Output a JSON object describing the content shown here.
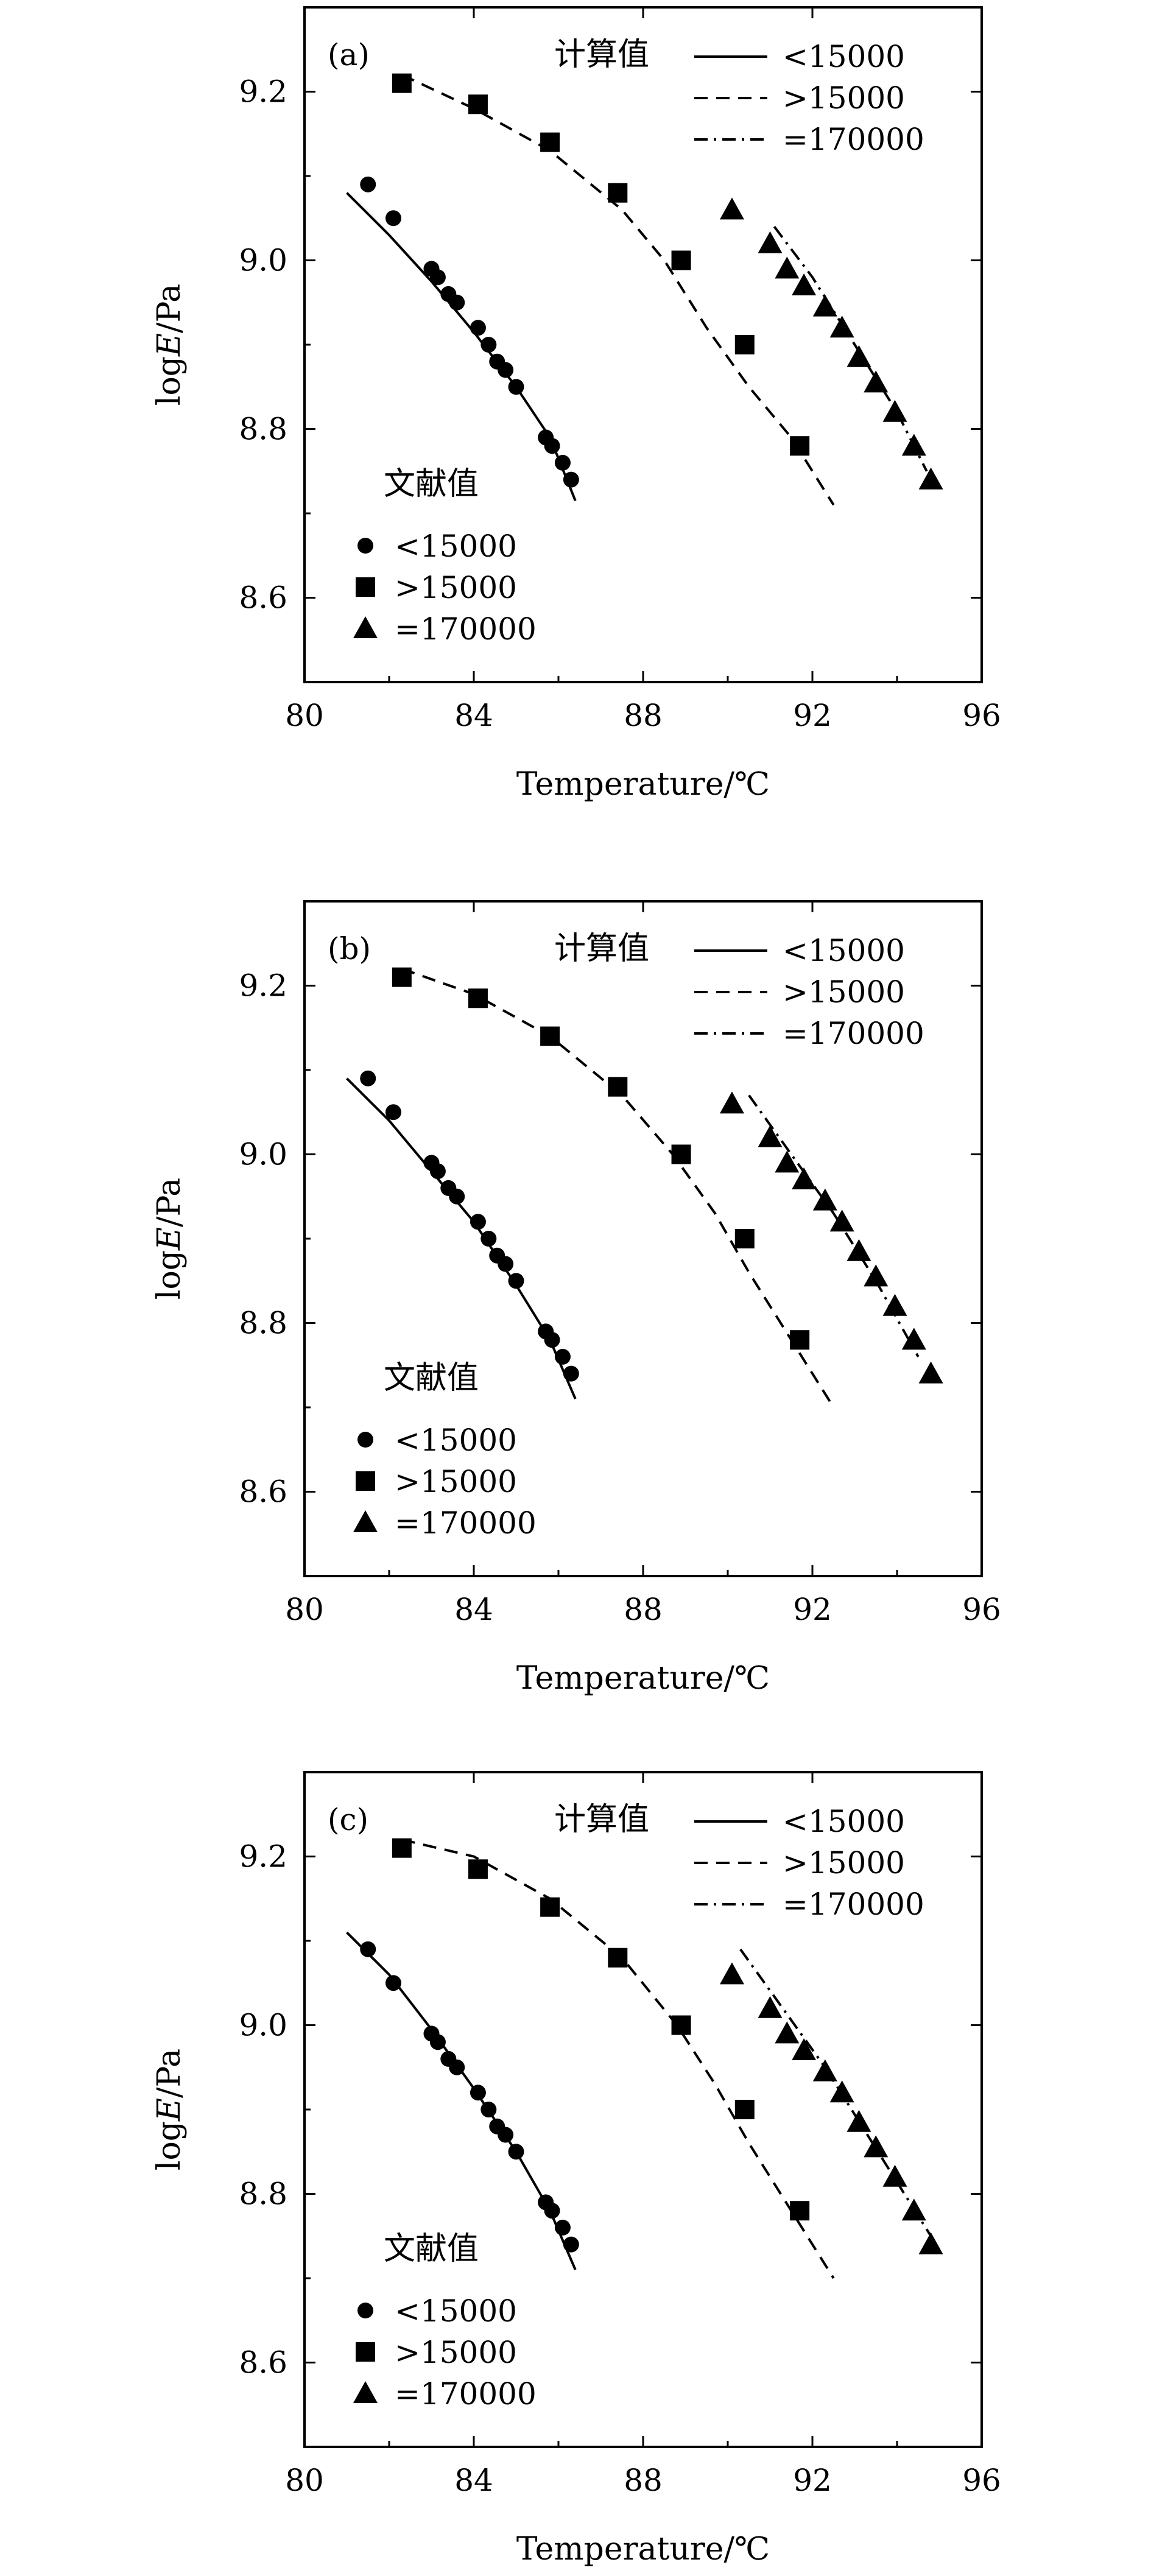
{
  "chart_data": [
    {
      "type": "scatter",
      "panel_label": "(a)",
      "xlabel": "Temperature/℃",
      "ylabel": "logE/Pa",
      "xlim": [
        80,
        96
      ],
      "ylim": [
        8.5,
        9.3
      ],
      "xticks": [
        "80",
        "84",
        "88",
        "92",
        "96"
      ],
      "yticks": [
        "8.6",
        "8.8",
        "9.0",
        "9.2"
      ],
      "legend_calc_title": "计算值",
      "legend_lit_title": "文献值",
      "series": [
        {
          "label": "<15000",
          "marker": "circle",
          "line": "solid",
          "points": [
            [
              81.5,
              9.09
            ],
            [
              82.1,
              9.05
            ],
            [
              83.0,
              8.99
            ],
            [
              83.15,
              8.98
            ],
            [
              83.4,
              8.96
            ],
            [
              83.6,
              8.95
            ],
            [
              84.1,
              8.92
            ],
            [
              84.35,
              8.9
            ],
            [
              84.55,
              8.88
            ],
            [
              84.75,
              8.87
            ],
            [
              85.0,
              8.85
            ],
            [
              85.7,
              8.79
            ],
            [
              85.85,
              8.78
            ],
            [
              86.1,
              8.76
            ],
            [
              86.3,
              8.74
            ]
          ],
          "curve": [
            [
              81.0,
              9.08
            ],
            [
              82.0,
              9.03
            ],
            [
              83.0,
              8.975
            ],
            [
              84.0,
              8.915
            ],
            [
              85.0,
              8.85
            ],
            [
              85.8,
              8.79
            ],
            [
              86.4,
              8.715
            ]
          ]
        },
        {
          "label": ">15000",
          "marker": "square",
          "line": "dashed",
          "points": [
            [
              82.3,
              9.21
            ],
            [
              84.1,
              9.185
            ],
            [
              85.8,
              9.14
            ],
            [
              87.4,
              9.08
            ],
            [
              88.9,
              9.0
            ],
            [
              90.4,
              8.9
            ],
            [
              91.7,
              8.78
            ]
          ],
          "curve": [
            [
              82.3,
              9.22
            ],
            [
              84.0,
              9.18
            ],
            [
              85.8,
              9.13
            ],
            [
              87.5,
              9.06
            ],
            [
              88.5,
              9.0
            ],
            [
              89.5,
              8.92
            ],
            [
              90.5,
              8.85
            ],
            [
              91.5,
              8.79
            ],
            [
              92.5,
              8.71
            ]
          ]
        },
        {
          "label": "=170000",
          "marker": "triangle",
          "line": "dashdot",
          "points": [
            [
              90.1,
              9.06
            ],
            [
              91.0,
              9.02
            ],
            [
              91.4,
              8.99
            ],
            [
              91.8,
              8.97
            ],
            [
              92.3,
              8.945
            ],
            [
              92.7,
              8.92
            ],
            [
              93.1,
              8.885
            ],
            [
              93.5,
              8.855
            ],
            [
              93.95,
              8.82
            ],
            [
              94.4,
              8.78
            ],
            [
              94.8,
              8.74
            ]
          ],
          "curve": [
            [
              91.1,
              9.04
            ],
            [
              92.0,
              8.98
            ],
            [
              93.0,
              8.9
            ],
            [
              94.0,
              8.82
            ],
            [
              94.7,
              8.75
            ]
          ]
        }
      ]
    },
    {
      "type": "scatter",
      "panel_label": "(b)",
      "xlabel": "Temperature/℃",
      "ylabel": "logE/Pa",
      "xlim": [
        80,
        96
      ],
      "ylim": [
        8.5,
        9.3
      ],
      "xticks": [
        "80",
        "84",
        "88",
        "92",
        "96"
      ],
      "yticks": [
        "8.6",
        "8.8",
        "9.0",
        "9.2"
      ],
      "legend_calc_title": "计算值",
      "legend_lit_title": "文献值",
      "series": [
        {
          "label": "<15000",
          "marker": "circle",
          "line": "solid",
          "points": [
            [
              81.5,
              9.09
            ],
            [
              82.1,
              9.05
            ],
            [
              83.0,
              8.99
            ],
            [
              83.15,
              8.98
            ],
            [
              83.4,
              8.96
            ],
            [
              83.6,
              8.95
            ],
            [
              84.1,
              8.92
            ],
            [
              84.35,
              8.9
            ],
            [
              84.55,
              8.88
            ],
            [
              84.75,
              8.87
            ],
            [
              85.0,
              8.85
            ],
            [
              85.7,
              8.79
            ],
            [
              85.85,
              8.78
            ],
            [
              86.1,
              8.76
            ],
            [
              86.3,
              8.74
            ]
          ],
          "curve": [
            [
              81.0,
              9.09
            ],
            [
              82.0,
              9.04
            ],
            [
              83.0,
              8.98
            ],
            [
              84.0,
              8.92
            ],
            [
              85.0,
              8.845
            ],
            [
              85.8,
              8.78
            ],
            [
              86.4,
              8.71
            ]
          ]
        },
        {
          "label": ">15000",
          "marker": "square",
          "line": "dashed",
          "points": [
            [
              82.3,
              9.21
            ],
            [
              84.1,
              9.185
            ],
            [
              85.8,
              9.14
            ],
            [
              87.4,
              9.08
            ],
            [
              88.9,
              9.0
            ],
            [
              90.4,
              8.9
            ],
            [
              91.7,
              8.78
            ]
          ],
          "curve": [
            [
              82.3,
              9.22
            ],
            [
              84.0,
              9.19
            ],
            [
              85.8,
              9.14
            ],
            [
              87.5,
              9.07
            ],
            [
              88.7,
              9.0
            ],
            [
              89.7,
              8.93
            ],
            [
              90.5,
              8.86
            ],
            [
              91.5,
              8.78
            ],
            [
              92.5,
              8.7
            ]
          ]
        },
        {
          "label": "=170000",
          "marker": "triangle",
          "line": "dashdot",
          "points": [
            [
              90.1,
              9.06
            ],
            [
              91.0,
              9.02
            ],
            [
              91.4,
              8.99
            ],
            [
              91.8,
              8.97
            ],
            [
              92.3,
              8.945
            ],
            [
              92.7,
              8.92
            ],
            [
              93.1,
              8.885
            ],
            [
              93.5,
              8.855
            ],
            [
              93.95,
              8.82
            ],
            [
              94.4,
              8.78
            ],
            [
              94.8,
              8.74
            ]
          ],
          "curve": [
            [
              90.5,
              9.07
            ],
            [
              91.5,
              9.0
            ],
            [
              92.5,
              8.93
            ],
            [
              93.5,
              8.85
            ],
            [
              94.5,
              8.76
            ]
          ]
        }
      ]
    },
    {
      "type": "scatter",
      "panel_label": "(c)",
      "xlabel": "Temperature/℃",
      "ylabel": "logE/Pa",
      "xlim": [
        80,
        96
      ],
      "ylim": [
        8.5,
        9.3
      ],
      "xticks": [
        "80",
        "84",
        "88",
        "92",
        "96"
      ],
      "yticks": [
        "8.6",
        "8.8",
        "9.0",
        "9.2"
      ],
      "legend_calc_title": "计算值",
      "legend_lit_title": "文献值",
      "series": [
        {
          "label": "<15000",
          "marker": "circle",
          "line": "solid",
          "points": [
            [
              81.5,
              9.09
            ],
            [
              82.1,
              9.05
            ],
            [
              83.0,
              8.99
            ],
            [
              83.15,
              8.98
            ],
            [
              83.4,
              8.96
            ],
            [
              83.6,
              8.95
            ],
            [
              84.1,
              8.92
            ],
            [
              84.35,
              8.9
            ],
            [
              84.55,
              8.88
            ],
            [
              84.75,
              8.87
            ],
            [
              85.0,
              8.85
            ],
            [
              85.7,
              8.79
            ],
            [
              85.85,
              8.78
            ],
            [
              86.1,
              8.76
            ],
            [
              86.3,
              8.74
            ]
          ],
          "curve": [
            [
              81.0,
              9.11
            ],
            [
              82.0,
              9.06
            ],
            [
              83.0,
              8.995
            ],
            [
              84.0,
              8.925
            ],
            [
              85.0,
              8.85
            ],
            [
              85.8,
              8.78
            ],
            [
              86.4,
              8.71
            ]
          ]
        },
        {
          "label": ">15000",
          "marker": "square",
          "line": "dashed",
          "points": [
            [
              82.3,
              9.21
            ],
            [
              84.1,
              9.185
            ],
            [
              85.8,
              9.14
            ],
            [
              87.4,
              9.08
            ],
            [
              88.9,
              9.0
            ],
            [
              90.4,
              8.9
            ],
            [
              91.7,
              8.78
            ]
          ],
          "curve": [
            [
              82.3,
              9.22
            ],
            [
              84.0,
              9.2
            ],
            [
              85.8,
              9.15
            ],
            [
              87.5,
              9.08
            ],
            [
              88.8,
              9.0
            ],
            [
              89.7,
              8.93
            ],
            [
              90.5,
              8.86
            ],
            [
              91.5,
              8.78
            ],
            [
              92.5,
              8.7
            ]
          ]
        },
        {
          "label": "=170000",
          "marker": "triangle",
          "line": "dashdot",
          "points": [
            [
              90.1,
              9.06
            ],
            [
              91.0,
              9.02
            ],
            [
              91.4,
              8.99
            ],
            [
              91.8,
              8.97
            ],
            [
              92.3,
              8.945
            ],
            [
              92.7,
              8.92
            ],
            [
              93.1,
              8.885
            ],
            [
              93.5,
              8.855
            ],
            [
              93.95,
              8.82
            ],
            [
              94.4,
              8.78
            ],
            [
              94.8,
              8.74
            ]
          ],
          "curve": [
            [
              90.3,
              9.09
            ],
            [
              91.3,
              9.02
            ],
            [
              92.3,
              8.95
            ],
            [
              93.3,
              8.87
            ],
            [
              94.3,
              8.79
            ],
            [
              94.8,
              8.75
            ]
          ]
        }
      ]
    }
  ]
}
